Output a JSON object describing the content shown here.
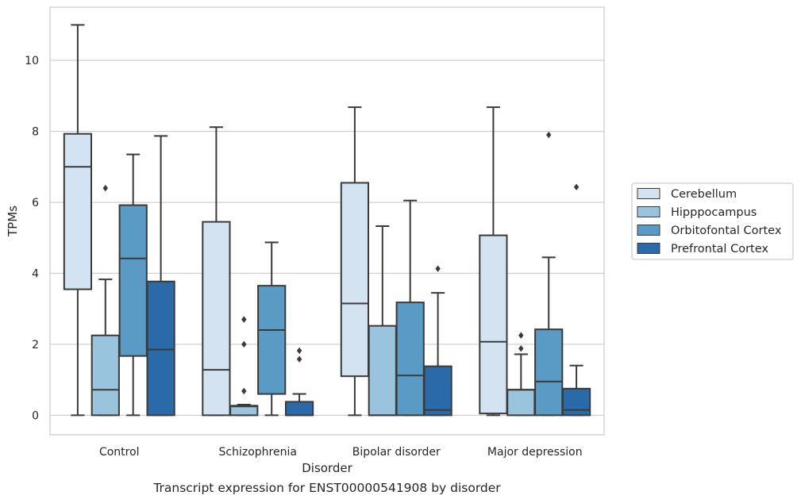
{
  "caption": "Transcript expression for ENST00000541908 by disorder",
  "chart_data": {
    "type": "boxplot",
    "title": "",
    "xlabel": "Disorder",
    "ylabel": "TPMs",
    "ylim": [
      -0.55,
      11.5
    ],
    "yticks": [
      0,
      2,
      4,
      6,
      8,
      10
    ],
    "grid": "horizontal",
    "legend_position": "right",
    "categories": [
      "Control",
      "Schizophrenia",
      "Bipolar disorder",
      "Major depression"
    ],
    "series": [
      {
        "name": "Cerebellum",
        "color": "#d3e3f2",
        "boxes": [
          {
            "whislo": 0,
            "q1": 3.55,
            "med": 7.0,
            "q3": 7.93,
            "whishi": 11.0,
            "fliers": []
          },
          {
            "whislo": 0,
            "q1": 0,
            "med": 1.28,
            "q3": 5.45,
            "whishi": 8.12,
            "fliers": []
          },
          {
            "whislo": 0,
            "q1": 1.1,
            "med": 3.15,
            "q3": 6.55,
            "whishi": 8.68,
            "fliers": []
          },
          {
            "whislo": 0,
            "q1": 0.05,
            "med": 2.07,
            "q3": 5.07,
            "whishi": 8.68,
            "fliers": []
          }
        ]
      },
      {
        "name": "Hipppocampus",
        "color": "#9ac3dd",
        "boxes": [
          {
            "whislo": 0,
            "q1": 0,
            "med": 0.72,
            "q3": 2.25,
            "whishi": 3.83,
            "fliers": [
              6.4
            ]
          },
          {
            "whislo": 0,
            "q1": 0,
            "med": 0.25,
            "q3": 0.27,
            "whishi": 0.3,
            "fliers": [
              0.68,
              2.0,
              2.7
            ]
          },
          {
            "whislo": 0,
            "q1": 0,
            "med": 0,
            "q3": 2.52,
            "whishi": 5.33,
            "fliers": []
          },
          {
            "whislo": 0,
            "q1": 0,
            "med": 0.72,
            "q3": 0.72,
            "whishi": 1.72,
            "fliers": [
              1.88,
              2.25
            ]
          }
        ]
      },
      {
        "name": "Orbitofontal Cortex",
        "color": "#5a9bc6",
        "boxes": [
          {
            "whislo": 0,
            "q1": 1.67,
            "med": 4.42,
            "q3": 5.92,
            "whishi": 7.35,
            "fliers": []
          },
          {
            "whislo": 0,
            "q1": 0.6,
            "med": 2.4,
            "q3": 3.65,
            "whishi": 4.87,
            "fliers": []
          },
          {
            "whislo": 0,
            "q1": 0,
            "med": 1.12,
            "q3": 3.18,
            "whishi": 6.05,
            "fliers": []
          },
          {
            "whislo": 0,
            "q1": 0,
            "med": 0.95,
            "q3": 2.42,
            "whishi": 4.45,
            "fliers": [
              7.9
            ]
          }
        ]
      },
      {
        "name": "Prefrontal Cortex",
        "color": "#2a6aa8",
        "boxes": [
          {
            "whislo": 0,
            "q1": 0,
            "med": 1.85,
            "q3": 3.77,
            "whishi": 7.87,
            "fliers": []
          },
          {
            "whislo": 0,
            "q1": 0,
            "med": 0,
            "q3": 0.38,
            "whishi": 0.6,
            "fliers": [
              1.58,
              1.82
            ]
          },
          {
            "whislo": 0,
            "q1": 0,
            "med": 0.15,
            "q3": 1.38,
            "whishi": 3.45,
            "fliers": [
              4.13
            ]
          },
          {
            "whislo": 0,
            "q1": 0,
            "med": 0.15,
            "q3": 0.75,
            "whishi": 1.4,
            "fliers": [
              6.43
            ]
          }
        ]
      }
    ]
  }
}
